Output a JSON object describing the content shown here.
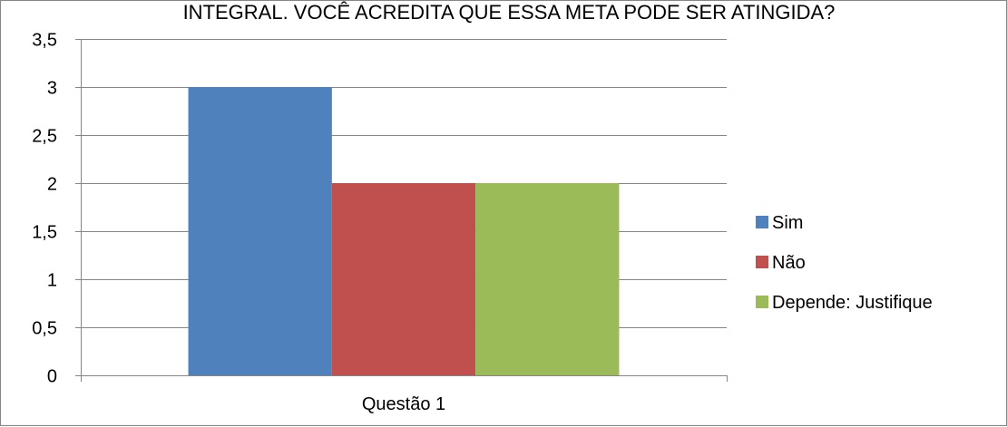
{
  "chart_data": {
    "type": "bar",
    "title": "INTEGRAL. VOCÊ ACREDITA QUE ESSA META PODE SER ATINGIDA?",
    "categories": [
      "Questão 1"
    ],
    "series": [
      {
        "name": "Sim",
        "values": [
          3
        ],
        "color": "#4F81BD"
      },
      {
        "name": "Não",
        "values": [
          2
        ],
        "color": "#C0504D"
      },
      {
        "name": "Depende: Justifique",
        "values": [
          2
        ],
        "color": "#9BBB59"
      }
    ],
    "ylim": [
      0,
      3.5
    ],
    "yticks": [
      "0",
      "0,5",
      "1",
      "1,5",
      "2",
      "2,5",
      "3",
      "3,5"
    ],
    "ytick_step": 0.5,
    "grid": true,
    "legend_position": "right"
  }
}
